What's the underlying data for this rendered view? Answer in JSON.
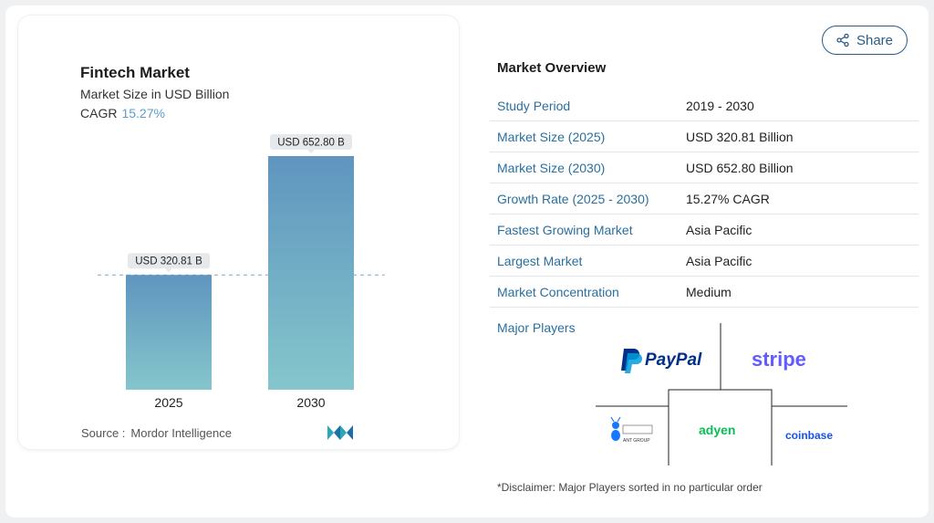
{
  "chart": {
    "title": "Fintech Market",
    "subtitle": "Market Size in USD Billion",
    "cagr_label": "CAGR",
    "cagr_value": "15.27%",
    "source_label": "Source :",
    "source_name": "Mordor Intelligence",
    "colors": {
      "bar_top": "#5f95bf",
      "bar_bottom": "#85c6cc",
      "label_bg": "#e6e9ec",
      "dashed": "#7fa8c9"
    }
  },
  "chart_data": {
    "type": "bar",
    "title": "Fintech Market",
    "subtitle": "Market Size in USD Billion",
    "categories": [
      "2025",
      "2030"
    ],
    "values": [
      320.81,
      652.8
    ],
    "data_labels": [
      "USD 320.81 B",
      "USD 652.80 B"
    ],
    "unit": "USD Billion",
    "cagr": "15.27%",
    "ylim": [
      0,
      652.8
    ],
    "grid": false,
    "reference_line": 320.81
  },
  "share": {
    "label": "Share"
  },
  "overview": {
    "title": "Market Overview",
    "rows": [
      {
        "label": "Study Period",
        "value": "2019 - 2030"
      },
      {
        "label": "Market Size (2025)",
        "value": "USD 320.81 Billion"
      },
      {
        "label": "Market Size (2030)",
        "value": "USD 652.80 Billion"
      },
      {
        "label": "Growth Rate (2025 - 2030)",
        "value": "15.27% CAGR"
      },
      {
        "label": "Fastest Growing Market",
        "value": "Asia Pacific"
      },
      {
        "label": "Largest Market",
        "value": "Asia Pacific"
      },
      {
        "label": "Market Concentration",
        "value": "Medium"
      }
    ],
    "players_label": "Major Players",
    "players": [
      "PayPal",
      "stripe",
      "ANT GROUP",
      "adyen",
      "coinbase"
    ],
    "disclaimer": "*Disclaimer: Major Players sorted in no particular order"
  }
}
